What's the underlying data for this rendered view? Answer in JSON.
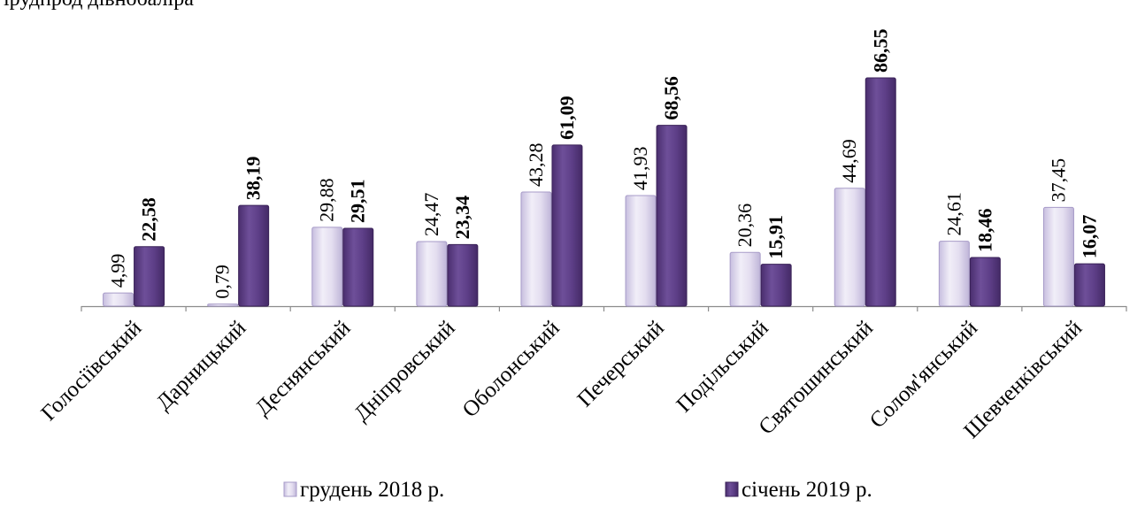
{
  "chart_data": {
    "type": "bar",
    "categories": [
      "Голосіївський",
      "Дарницький",
      "Деснянський",
      "Дніпровський",
      "Оболонський",
      "Печерський",
      "Подільський",
      "Святошинський",
      "Солом'янський",
      "Шевченківський"
    ],
    "series": [
      {
        "name": "грудень 2018 р.",
        "values": [
          4.99,
          0.79,
          29.88,
          24.47,
          43.28,
          41.93,
          20.36,
          44.69,
          24.61,
          37.45
        ],
        "labels": [
          "4,99",
          "0,79",
          "29,88",
          "24,47",
          "43,28",
          "41,93",
          "20,36",
          "44,69",
          "24,61",
          "37,45"
        ],
        "color": "#d7d0e8",
        "label_weight": "normal"
      },
      {
        "name": "січень 2019 р.",
        "values": [
          22.58,
          38.19,
          29.51,
          23.34,
          61.09,
          68.56,
          15.91,
          86.55,
          18.46,
          16.07
        ],
        "labels": [
          "22,58",
          "38,19",
          "29,51",
          "23,34",
          "61,09",
          "68,56",
          "15,91",
          "86,55",
          "18,46",
          "16,07"
        ],
        "color": "#5a3a82",
        "label_weight": "bold"
      }
    ],
    "legend_position": "bottom",
    "grid": false,
    "ylim": [
      0,
      86.55
    ],
    "title": "",
    "xlabel": "",
    "ylabel": ""
  },
  "top_text": "ірудпрод дівнобаліра"
}
